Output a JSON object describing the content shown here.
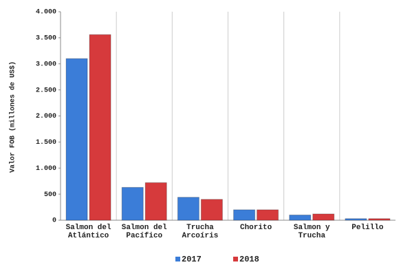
{
  "chart_data": {
    "type": "bar",
    "categories": [
      "Salmon del Atlántico",
      "Salmon del Pacífico",
      "Trucha Arcoíris",
      "Chorito",
      "Salmon y Trucha",
      "Pelillo"
    ],
    "series": [
      {
        "name": "2017",
        "color": "#3b7dd8",
        "values": [
          3100,
          630,
          440,
          200,
          100,
          30
        ]
      },
      {
        "name": "2018",
        "color": "#d63a3c",
        "values": [
          3560,
          720,
          400,
          200,
          120,
          30
        ]
      }
    ],
    "y_label": "Valor FOB (millones de US$)",
    "ylim": [
      0,
      4000
    ],
    "yticks": [
      0,
      {
        "value": 500,
        "label": "500"
      },
      {
        "value": 1000,
        "label": "1.000"
      },
      {
        "value": 1500,
        "label": "1.500"
      },
      {
        "value": 2000,
        "label": "2.000"
      },
      {
        "value": 2500,
        "label": "2.500"
      },
      {
        "value": 3000,
        "label": "3.000"
      },
      {
        "value": 3500,
        "label": "3.500"
      },
      {
        "value": 4000,
        "label": "4.000"
      }
    ],
    "legend": "bottom"
  }
}
